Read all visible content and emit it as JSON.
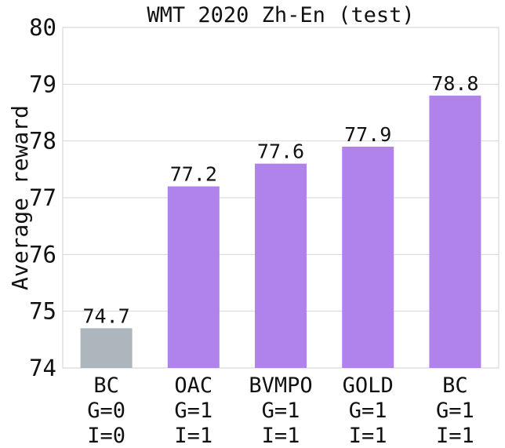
{
  "chart_data": {
    "type": "bar",
    "title": "WMT 2020 Zh-En (test)",
    "xlabel": "",
    "ylabel": "Average reward",
    "ylim": [
      74,
      80
    ],
    "yticks": [
      74,
      75,
      76,
      77,
      78,
      79,
      80
    ],
    "grid": true,
    "categories": [
      [
        "BC",
        "G=0",
        "I=0"
      ],
      [
        "OAC",
        "G=1",
        "I=1"
      ],
      [
        "BVMPO",
        "G=1",
        "I=1"
      ],
      [
        "GOLD",
        "G=1",
        "I=1"
      ],
      [
        "BC",
        "G=1",
        "I=1"
      ]
    ],
    "values": [
      74.7,
      77.2,
      77.6,
      77.9,
      78.8
    ],
    "value_labels": [
      "74.7",
      "77.2",
      "77.6",
      "77.9",
      "78.8"
    ],
    "bar_colors": [
      "#adb5bd",
      "#b083ec",
      "#b083ec",
      "#b083ec",
      "#b083ec"
    ]
  }
}
